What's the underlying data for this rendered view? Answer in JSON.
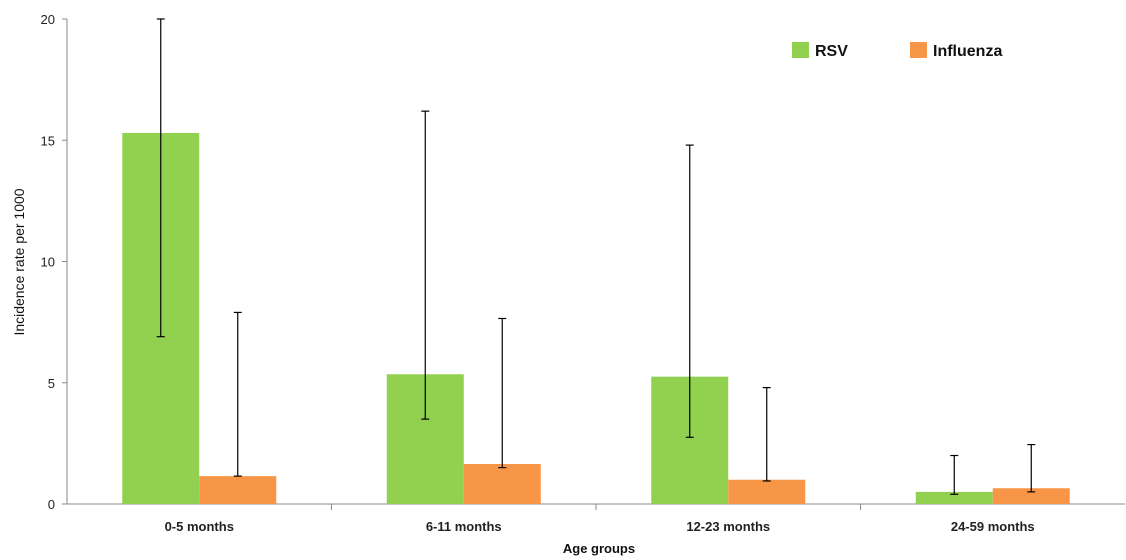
{
  "chart_data": {
    "type": "bar",
    "title": "",
    "xlabel": "Age groups",
    "ylabel": "Incidence rate per 1000",
    "ylim": [
      0,
      20
    ],
    "yticks": [
      0,
      5,
      10,
      15,
      20
    ],
    "grid": false,
    "legend_position": "top-right",
    "categories": [
      "0-5 months",
      "6-11 months",
      "12-23 months",
      "24-59 months"
    ],
    "series": [
      {
        "name": "RSV",
        "color": "#92d050",
        "values": [
          15.3,
          5.35,
          5.25,
          0.5
        ],
        "error_low": [
          6.9,
          3.5,
          2.75,
          0.4
        ],
        "error_high": [
          20.0,
          16.2,
          14.8,
          2.0
        ]
      },
      {
        "name": "Influenza",
        "color": "#f79646",
        "values": [
          1.15,
          1.65,
          1.0,
          0.65
        ],
        "error_low": [
          1.15,
          1.5,
          0.95,
          0.5
        ],
        "error_high": [
          7.9,
          7.65,
          4.8,
          2.45
        ]
      }
    ]
  }
}
